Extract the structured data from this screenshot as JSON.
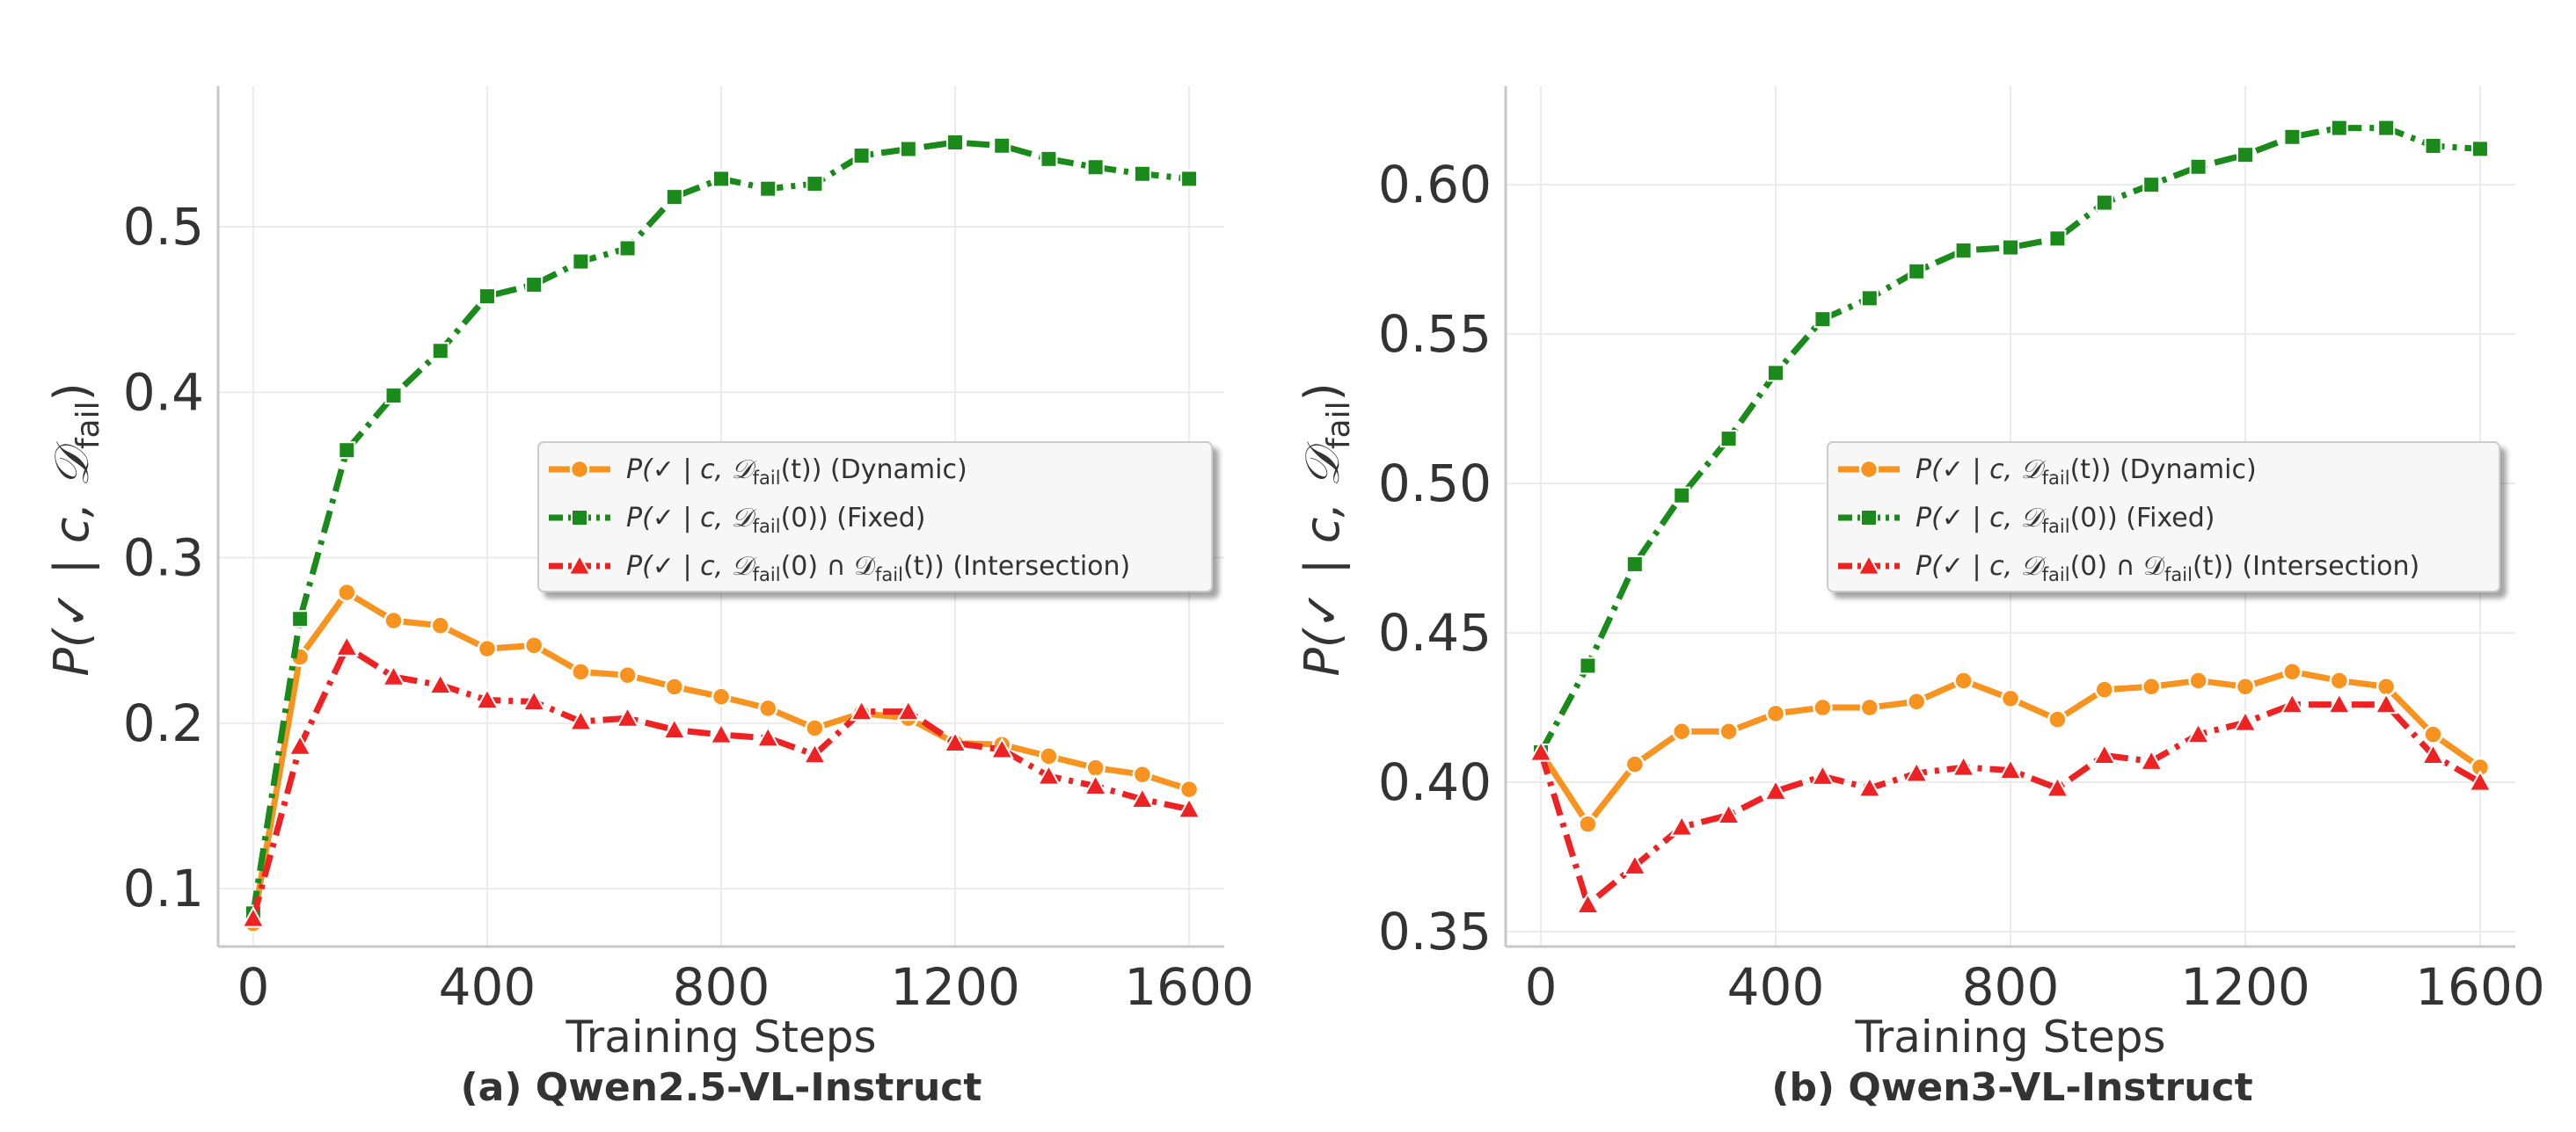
{
  "chart_data": [
    {
      "type": "line",
      "caption": "(a) Qwen2.5-VL-Instruct",
      "xlabel": "Training Steps",
      "ylabel": "P(✓ | c, 𝒟fail)",
      "ylim": [
        0.065,
        0.585
      ],
      "xlim": [
        -60,
        1660
      ],
      "xticks": [
        0,
        400,
        800,
        1200,
        1600
      ],
      "xtick_labels": [
        "0",
        "400",
        "800",
        "1200",
        "1600"
      ],
      "yticks": [
        0.1,
        0.2,
        0.3,
        0.4,
        0.5
      ],
      "ytick_labels": [
        "0.1",
        "0.2",
        "0.3",
        "0.4",
        "0.5"
      ],
      "legend_position": "center-right",
      "grid": true,
      "x": [
        0,
        80,
        160,
        240,
        320,
        400,
        480,
        560,
        640,
        720,
        800,
        880,
        960,
        1040,
        1120,
        1200,
        1280,
        1360,
        1440,
        1520,
        1600
      ],
      "series": [
        {
          "name": "P(✓ | c, 𝒟fail(t)) (Dynamic)",
          "label_parts": [
            "P(✓ | c, 𝒟",
            "fail",
            "(t)) (Dynamic)"
          ],
          "color": "#f7931e",
          "marker": "circle",
          "dash": "line",
          "values": [
            0.079,
            0.24,
            0.279,
            0.262,
            0.259,
            0.245,
            0.247,
            0.231,
            0.229,
            0.222,
            0.216,
            0.209,
            0.197,
            0.206,
            0.203,
            0.188,
            0.187,
            0.18,
            0.173,
            0.169,
            0.16
          ]
        },
        {
          "name": "P(✓ | c, 𝒟fail(0)) (Fixed)",
          "label_parts": [
            "P(✓ | c, 𝒟",
            "fail",
            "(0)) (Fixed)"
          ],
          "color": "#1a8a1a",
          "marker": "square",
          "dash": "dashdot",
          "values": [
            0.085,
            0.263,
            0.365,
            0.398,
            0.425,
            0.458,
            0.465,
            0.479,
            0.487,
            0.518,
            0.529,
            0.523,
            0.526,
            0.543,
            0.547,
            0.551,
            0.549,
            0.541,
            0.536,
            0.532,
            0.529
          ]
        },
        {
          "name": "P(✓ | c, 𝒟fail(0) ∩ 𝒟fail(t)) (Intersection)",
          "label_parts": [
            "P(✓ | c, 𝒟",
            "fail",
            "(0) ∩ 𝒟",
            "fail",
            "(t)) (Intersection)"
          ],
          "color": "#ee2222",
          "marker": "triangle",
          "dash": "dashdot",
          "values": [
            0.082,
            0.186,
            0.246,
            0.228,
            0.223,
            0.214,
            0.213,
            0.201,
            0.203,
            0.196,
            0.193,
            0.191,
            0.181,
            0.207,
            0.207,
            0.188,
            0.184,
            0.168,
            0.162,
            0.154,
            0.148
          ]
        }
      ]
    },
    {
      "type": "line",
      "caption": "(b) Qwen3-VL-Instruct",
      "xlabel": "Training Steps",
      "ylabel": "P(✓ | c, 𝒟fail)",
      "ylim": [
        0.345,
        0.633
      ],
      "xlim": [
        -60,
        1660
      ],
      "xticks": [
        0,
        400,
        800,
        1200,
        1600
      ],
      "xtick_labels": [
        "0",
        "400",
        "800",
        "1200",
        "1600"
      ],
      "yticks": [
        0.35,
        0.4,
        0.45,
        0.5,
        0.55,
        0.6
      ],
      "ytick_labels": [
        "0.35",
        "0.40",
        "0.45",
        "0.50",
        "0.55",
        "0.60"
      ],
      "legend_position": "center-right",
      "grid": true,
      "x": [
        0,
        80,
        160,
        240,
        320,
        400,
        480,
        560,
        640,
        720,
        800,
        880,
        960,
        1040,
        1120,
        1200,
        1280,
        1360,
        1440,
        1520,
        1600
      ],
      "series": [
        {
          "name": "P(✓ | c, 𝒟fail(t)) (Dynamic)",
          "label_parts": [
            "P(✓ | c, 𝒟",
            "fail",
            "(t)) (Dynamic)"
          ],
          "color": "#f7931e",
          "marker": "circle",
          "dash": "line",
          "values": [
            0.41,
            0.386,
            0.406,
            0.417,
            0.417,
            0.423,
            0.425,
            0.425,
            0.427,
            0.434,
            0.428,
            0.421,
            0.431,
            0.432,
            0.434,
            0.432,
            0.437,
            0.434,
            0.432,
            0.416,
            0.405
          ]
        },
        {
          "name": "P(✓ | c, 𝒟fail(0)) (Fixed)",
          "label_parts": [
            "P(✓ | c, 𝒟",
            "fail",
            "(0)) (Fixed)"
          ],
          "color": "#1a8a1a",
          "marker": "square",
          "dash": "dashdot",
          "values": [
            0.41,
            0.439,
            0.473,
            0.496,
            0.515,
            0.537,
            0.555,
            0.562,
            0.571,
            0.578,
            0.579,
            0.582,
            0.594,
            0.6,
            0.606,
            0.61,
            0.616,
            0.619,
            0.619,
            0.613,
            0.612
          ]
        },
        {
          "name": "P(✓ | c, 𝒟fail(0) ∩ 𝒟fail(t)) (Intersection)",
          "label_parts": [
            "P(✓ | c, 𝒟",
            "fail",
            "(0) ∩ 𝒟",
            "fail",
            "(t)) (Intersection)"
          ],
          "color": "#ee2222",
          "marker": "triangle",
          "dash": "dashdot",
          "values": [
            0.41,
            0.359,
            0.372,
            0.385,
            0.389,
            0.397,
            0.402,
            0.398,
            0.403,
            0.405,
            0.404,
            0.398,
            0.409,
            0.407,
            0.416,
            0.42,
            0.426,
            0.426,
            0.426,
            0.409,
            0.4
          ]
        }
      ]
    }
  ]
}
